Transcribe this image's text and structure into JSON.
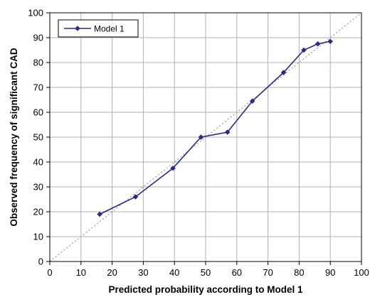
{
  "chart_data": {
    "type": "line",
    "xlabel": "Predicted probability according to Model 1",
    "ylabel": "Observed frequency of significant CAD",
    "xlim": [
      0,
      100
    ],
    "ylim": [
      0,
      100
    ],
    "x_ticks": [
      "0",
      "10",
      "20",
      "30",
      "40",
      "50",
      "60",
      "70",
      "80",
      "90",
      "100"
    ],
    "y_ticks": [
      "0",
      "10",
      "20",
      "30",
      "40",
      "50",
      "60",
      "70",
      "80",
      "90",
      "100"
    ],
    "grid": true,
    "legend_position": "top-left",
    "reference_line": {
      "style": "dotted",
      "from": [
        0,
        0
      ],
      "to": [
        100,
        100
      ]
    },
    "series": [
      {
        "name": "Model 1",
        "color": "#2b2b84",
        "marker": "diamond",
        "x": [
          16,
          27.5,
          39.5,
          48.5,
          57,
          65,
          75,
          81.5,
          86,
          90
        ],
        "y": [
          19,
          26,
          37.5,
          50,
          52,
          64.5,
          76,
          85,
          87.5,
          88.5
        ]
      }
    ]
  }
}
